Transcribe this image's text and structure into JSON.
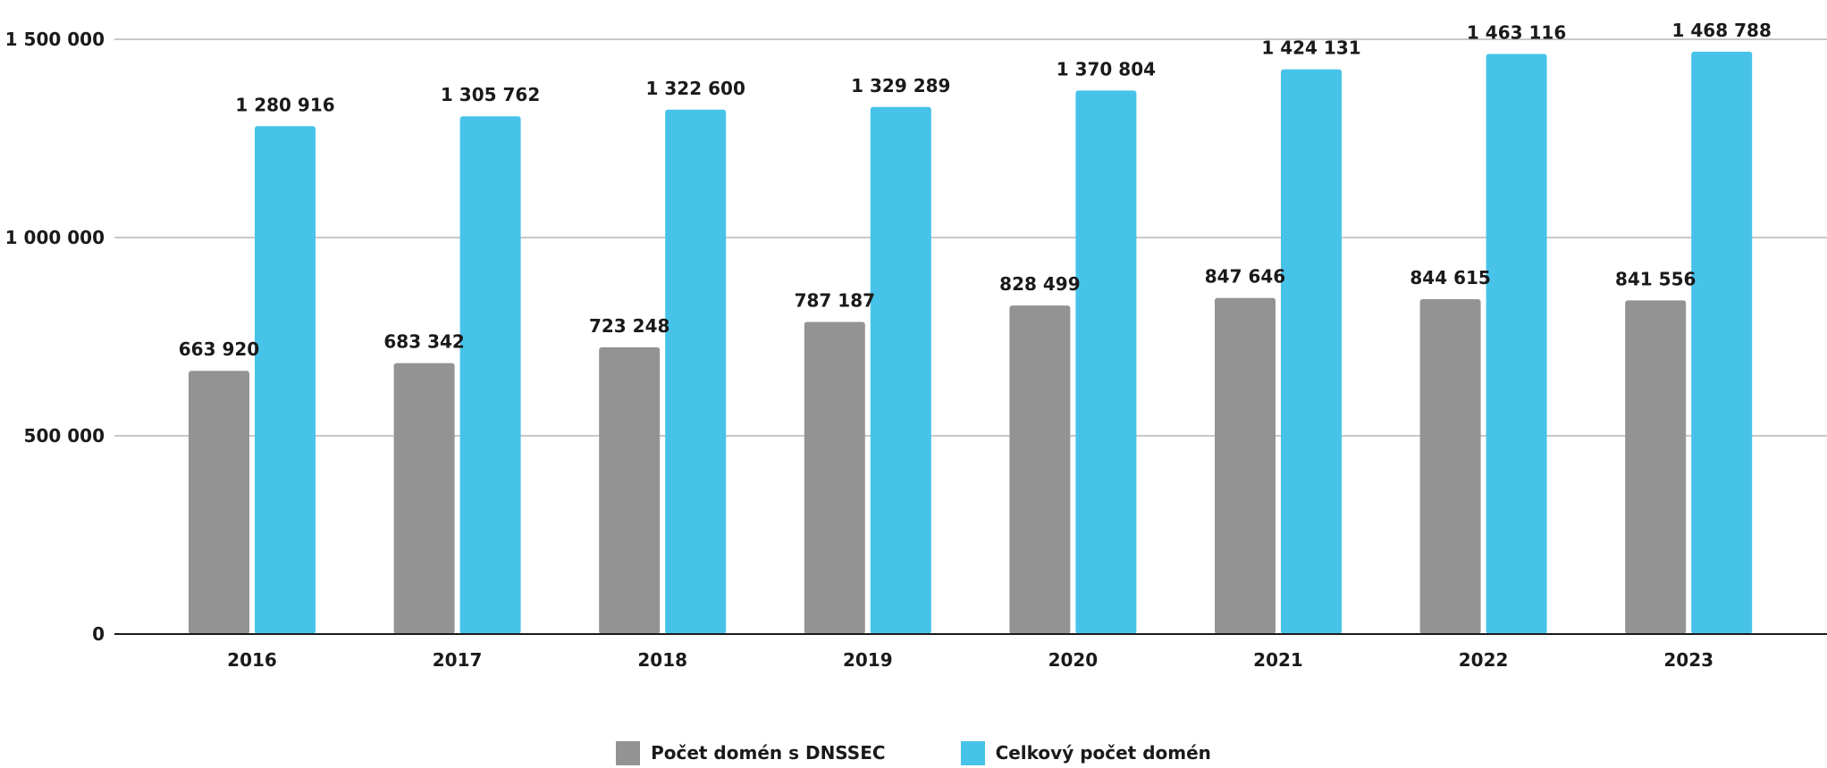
{
  "chart_data": {
    "type": "bar",
    "title": "",
    "xlabel": "",
    "ylabel": "",
    "categories": [
      "2016",
      "2017",
      "2018",
      "2019",
      "2020",
      "2021",
      "2022",
      "2023"
    ],
    "series": [
      {
        "name": "Počet domén s DNSSEC",
        "color": "#939393",
        "values": [
          663920,
          683342,
          723248,
          787187,
          828499,
          847646,
          844615,
          841556
        ],
        "labels": [
          "663 920",
          "683 342",
          "723 248",
          "787 187",
          "828 499",
          "847 646",
          "844 615",
          "841 556"
        ]
      },
      {
        "name": "Celkový počet domén",
        "color": "#47c3e9",
        "values": [
          1280916,
          1305762,
          1322600,
          1329289,
          1370804,
          1424131,
          1463116,
          1468788
        ],
        "labels": [
          "1 280 916",
          "1 305 762",
          "1 322 600",
          "1 329 289",
          "1 370 804",
          "1 424 131",
          "1 463 116",
          "1 468 788"
        ]
      }
    ],
    "ylim": [
      0,
      1500000
    ],
    "yticks": [
      0,
      500000,
      1000000,
      1500000
    ],
    "ytick_labels": [
      "0",
      "500 000",
      "1 000 000",
      "1 500 000"
    ],
    "grid": true,
    "legend_position": "bottom-center"
  }
}
